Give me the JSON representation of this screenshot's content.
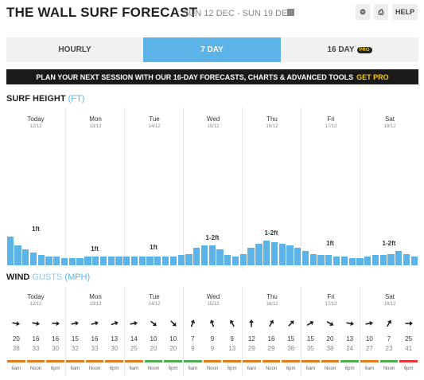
{
  "header": {
    "title": "THE WALL SURF FORECAST",
    "dates": "SUN 12 DEC - SUN 19 DEC",
    "help": "HELP"
  },
  "tabs": [
    {
      "label": "HOURLY",
      "active": false
    },
    {
      "label": "7 DAY",
      "active": true
    },
    {
      "label": "16 DAY",
      "active": false,
      "badge": "PRO"
    }
  ],
  "banner": {
    "text": "PLAN YOUR NEXT SESSION WITH OUR 16-DAY FORECASTS, CHARTS & ADVANCED TOOLS",
    "cta": "GET PRO"
  },
  "surf": {
    "heading": "SURF HEIGHT",
    "unit": "(FT)"
  },
  "wind": {
    "heading": "WIND",
    "sub": "GUSTS",
    "unit": "(MPH)"
  },
  "days": [
    {
      "name": "Today",
      "date": "12/12",
      "label": "1ft"
    },
    {
      "name": "Mon",
      "date": "13/12",
      "label": "1ft"
    },
    {
      "name": "Tue",
      "date": "14/12",
      "label": "1ft"
    },
    {
      "name": "Wed",
      "date": "15/12",
      "label": "1-2ft"
    },
    {
      "name": "Thu",
      "date": "16/12",
      "label": "1-2ft"
    },
    {
      "name": "Fri",
      "date": "17/12",
      "label": "1ft"
    },
    {
      "name": "Sat",
      "date": "18/12",
      "label": "1-2ft"
    }
  ],
  "chart_data": {
    "type": "bar",
    "title": "SURF HEIGHT (FT)",
    "values": [
      1.0,
      0.7,
      0.55,
      0.45,
      0.35,
      0.3,
      0.3,
      0.25,
      0.25,
      0.25,
      0.3,
      0.3,
      0.3,
      0.3,
      0.3,
      0.3,
      0.3,
      0.3,
      0.3,
      0.3,
      0.3,
      0.3,
      0.35,
      0.4,
      0.6,
      0.7,
      0.7,
      0.55,
      0.35,
      0.3,
      0.4,
      0.6,
      0.75,
      0.85,
      0.8,
      0.75,
      0.7,
      0.6,
      0.5,
      0.4,
      0.35,
      0.35,
      0.3,
      0.3,
      0.25,
      0.25,
      0.3,
      0.35,
      0.35,
      0.4,
      0.5,
      0.4,
      0.3
    ],
    "day_labels": [
      "1ft",
      "1ft",
      "1ft",
      "1-2ft",
      "1-2ft",
      "1ft",
      "1-2ft"
    ]
  },
  "wind_times": [
    "6am",
    "Noon",
    "6pm"
  ],
  "wind_data": [
    {
      "dir": 100,
      "speed": 20,
      "gust": 38,
      "rate": "orange"
    },
    {
      "dir": 100,
      "speed": 16,
      "gust": 33,
      "rate": "orange"
    },
    {
      "dir": 95,
      "speed": 16,
      "gust": 30,
      "rate": "orange"
    },
    {
      "dir": 80,
      "speed": 15,
      "gust": 32,
      "rate": "orange"
    },
    {
      "dir": 75,
      "speed": 16,
      "gust": 33,
      "rate": "orange"
    },
    {
      "dir": 70,
      "speed": 13,
      "gust": 30,
      "rate": "orange"
    },
    {
      "dir": 80,
      "speed": 14,
      "gust": 25,
      "rate": "orange"
    },
    {
      "dir": 130,
      "speed": 10,
      "gust": 20,
      "rate": "green"
    },
    {
      "dir": 135,
      "speed": 10,
      "gust": 20,
      "rate": "green"
    },
    {
      "dir": 20,
      "speed": 7,
      "gust": 9,
      "rate": "green"
    },
    {
      "dir": 340,
      "speed": 9,
      "gust": 9,
      "rate": "orange"
    },
    {
      "dir": 330,
      "speed": 9,
      "gust": 13,
      "rate": "orange"
    },
    {
      "dir": 0,
      "speed": 12,
      "gust": 29,
      "rate": "orange"
    },
    {
      "dir": 30,
      "speed": 16,
      "gust": 29,
      "rate": "orange"
    },
    {
      "dir": 45,
      "speed": 15,
      "gust": 36,
      "rate": "orange"
    },
    {
      "dir": 60,
      "speed": 15,
      "gust": 35,
      "rate": "orange"
    },
    {
      "dir": 120,
      "speed": 20,
      "gust": 38,
      "rate": "orange"
    },
    {
      "dir": 100,
      "speed": 13,
      "gust": 24,
      "rate": "green"
    },
    {
      "dir": 80,
      "speed": 10,
      "gust": 27,
      "rate": "orange"
    },
    {
      "dir": 30,
      "speed": 7,
      "gust": 23,
      "rate": "green"
    },
    {
      "dir": 90,
      "speed": 25,
      "gust": 41,
      "rate": "red"
    }
  ],
  "colors": {
    "accent": "#5bb3e8",
    "orange": "#e07b1f",
    "green": "#4caf50",
    "red": "#e53935"
  }
}
